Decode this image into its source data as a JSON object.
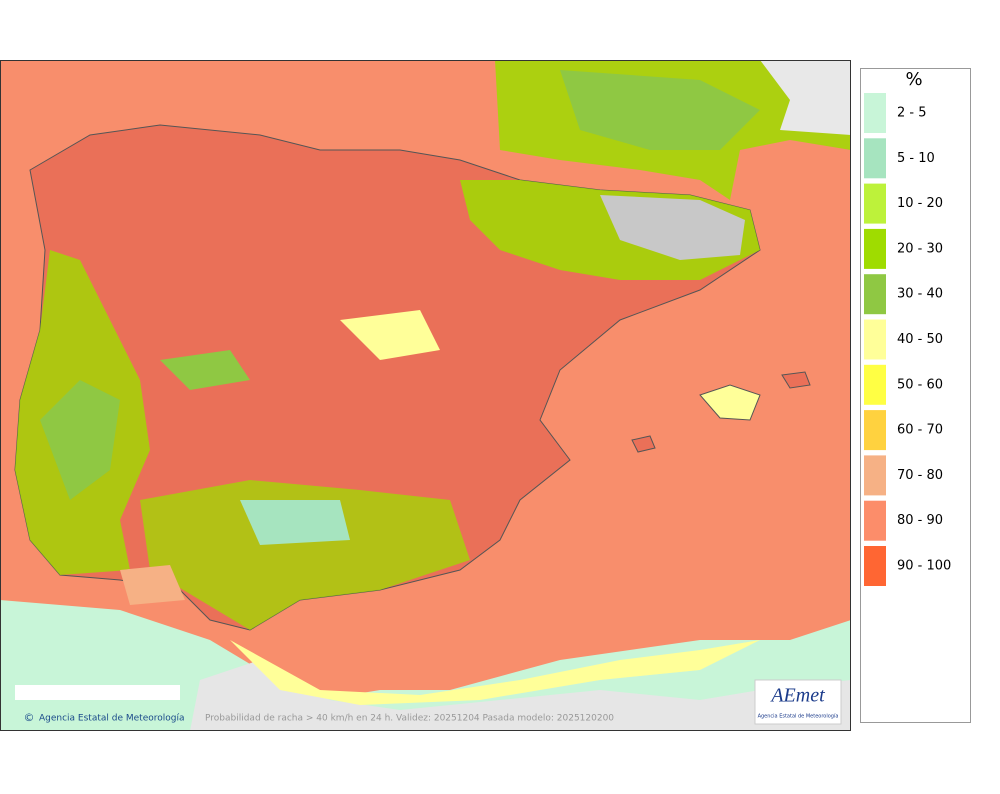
{
  "legend": {
    "title": "%",
    "items": [
      {
        "label": "2 - 5",
        "color": "#c8f5d8"
      },
      {
        "label": "5 - 10",
        "color": "#a6e4bf"
      },
      {
        "label": "10 - 20",
        "color": "#bdf23a"
      },
      {
        "label": "20 - 30",
        "color": "#9fdc00"
      },
      {
        "label": "30 - 40",
        "color": "#8fc843"
      },
      {
        "label": "40 - 50",
        "color": "#ffff99"
      },
      {
        "label": "50 - 60",
        "color": "#ffff44"
      },
      {
        "label": "60 - 70",
        "color": "#ffd23f"
      },
      {
        "label": "70 - 80",
        "color": "#f6b185"
      },
      {
        "label": "80 - 90",
        "color": "#fc8d6a"
      },
      {
        "label": "90 - 100",
        "color": "#ff6633"
      }
    ]
  },
  "footer": {
    "copyright": "©",
    "credit": "Agencia Estatal de Meteorología",
    "caption": "Probabilidad de racha > 40 km/h en 24 h. Validez: 20251204 Pasada modelo: 2025120200"
  },
  "logo": {
    "name": "AEmet",
    "subtitle": "Agencia Estatal de Meteorología"
  }
}
